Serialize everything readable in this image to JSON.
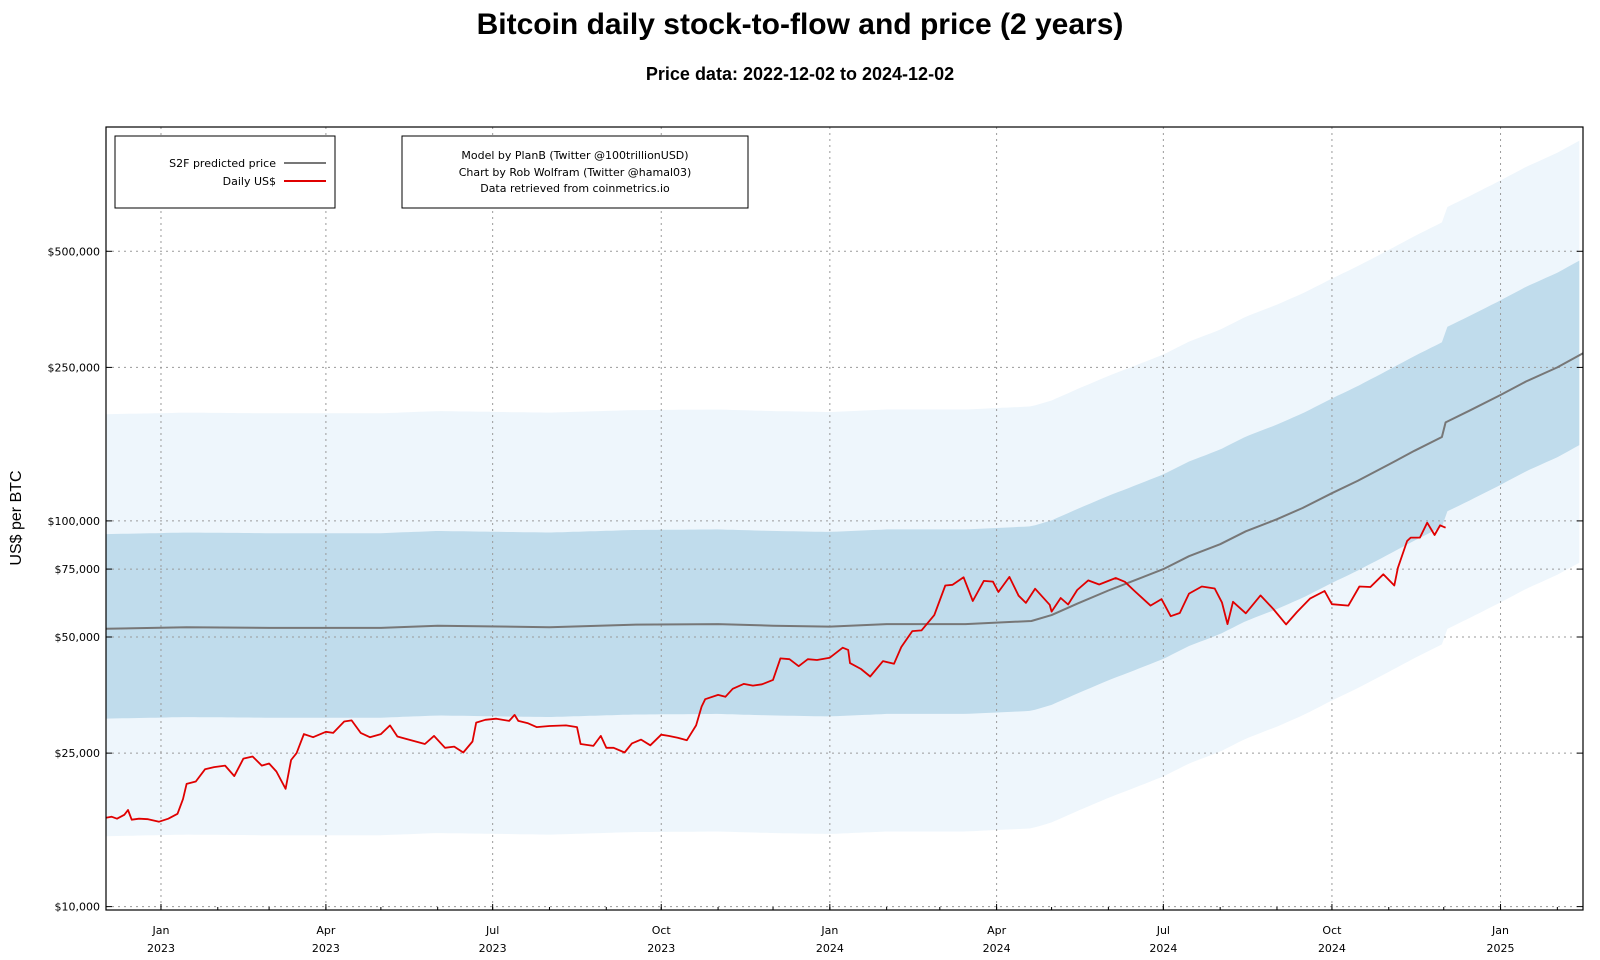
{
  "chart_data": {
    "type": "line",
    "title": "Bitcoin daily stock-to-flow and price (2 years)",
    "subtitle": "Price data: 2022-12-02 to 2024-12-02",
    "ylabel": "US$ per BTC",
    "xlabel": "",
    "yscale": "log",
    "ylim": [
      9800,
      1050000
    ],
    "xlim": [
      "2022-12-02",
      "2025-02-15"
    ],
    "grid": true,
    "legend_position": "top-left",
    "y_ticks": [
      {
        "value": 10000,
        "label": "$10,000"
      },
      {
        "value": 25000,
        "label": "$25,000"
      },
      {
        "value": 50000,
        "label": "$50,000"
      },
      {
        "value": 75000,
        "label": "$75,000"
      },
      {
        "value": 100000,
        "label": "$100,000"
      },
      {
        "value": 250000,
        "label": "$250,000"
      },
      {
        "value": 500000,
        "label": "$500,000"
      }
    ],
    "x_ticks": [
      {
        "date": "2023-01-01",
        "month": "Jan",
        "year": "2023"
      },
      {
        "date": "2023-04-01",
        "month": "Apr",
        "year": "2023"
      },
      {
        "date": "2023-07-01",
        "month": "Jul",
        "year": "2023"
      },
      {
        "date": "2023-10-01",
        "month": "Oct",
        "year": "2023"
      },
      {
        "date": "2024-01-01",
        "month": "Jan",
        "year": "2024"
      },
      {
        "date": "2024-04-01",
        "month": "Apr",
        "year": "2024"
      },
      {
        "date": "2024-07-01",
        "month": "Jul",
        "year": "2024"
      },
      {
        "date": "2024-10-01",
        "month": "Oct",
        "year": "2024"
      },
      {
        "date": "2025-01-01",
        "month": "Jan",
        "year": "2025"
      }
    ],
    "series": [
      {
        "name": "S2F predicted price",
        "color": "#777777",
        "points": [
          [
            "2022-12-02",
            52500
          ],
          [
            "2023-01-15",
            53000
          ],
          [
            "2023-03-01",
            52800
          ],
          [
            "2023-05-01",
            52800
          ],
          [
            "2023-06-01",
            53500
          ],
          [
            "2023-08-01",
            53000
          ],
          [
            "2023-09-15",
            53800
          ],
          [
            "2023-11-01",
            54000
          ],
          [
            "2023-12-01",
            53500
          ],
          [
            "2024-01-01",
            53200
          ],
          [
            "2024-02-01",
            54000
          ],
          [
            "2024-03-15",
            54000
          ],
          [
            "2024-04-20",
            55000
          ],
          [
            "2024-05-01",
            57000
          ],
          [
            "2024-05-15",
            61000
          ],
          [
            "2024-06-01",
            66000
          ],
          [
            "2024-06-15",
            70000
          ],
          [
            "2024-07-01",
            75000
          ],
          [
            "2024-07-15",
            81000
          ],
          [
            "2024-08-01",
            87000
          ],
          [
            "2024-08-15",
            94000
          ],
          [
            "2024-09-01",
            101000
          ],
          [
            "2024-09-15",
            108000
          ],
          [
            "2024-10-01",
            118000
          ],
          [
            "2024-10-15",
            127000
          ],
          [
            "2024-11-01",
            140000
          ],
          [
            "2024-11-15",
            152000
          ],
          [
            "2024-11-30",
            165000
          ],
          [
            "2024-12-02",
            180000
          ],
          [
            "2024-12-15",
            193000
          ],
          [
            "2025-01-01",
            212000
          ],
          [
            "2025-01-15",
            230000
          ],
          [
            "2025-02-01",
            250000
          ],
          [
            "2025-02-15",
            272000
          ]
        ]
      },
      {
        "name": "Daily US$",
        "color": "#e00000",
        "points": [
          [
            "2022-12-02",
            17000
          ],
          [
            "2022-12-05",
            17100
          ],
          [
            "2022-12-08",
            16900
          ],
          [
            "2022-12-12",
            17300
          ],
          [
            "2022-12-14",
            17800
          ],
          [
            "2022-12-16",
            16800
          ],
          [
            "2022-12-20",
            16900
          ],
          [
            "2022-12-25",
            16850
          ],
          [
            "2022-12-31",
            16600
          ],
          [
            "2023-01-05",
            16900
          ],
          [
            "2023-01-10",
            17400
          ],
          [
            "2023-01-13",
            19000
          ],
          [
            "2023-01-15",
            20800
          ],
          [
            "2023-01-20",
            21100
          ],
          [
            "2023-01-25",
            22700
          ],
          [
            "2023-01-30",
            23000
          ],
          [
            "2023-02-05",
            23200
          ],
          [
            "2023-02-10",
            21800
          ],
          [
            "2023-02-15",
            24200
          ],
          [
            "2023-02-20",
            24500
          ],
          [
            "2023-02-25",
            23200
          ],
          [
            "2023-03-01",
            23500
          ],
          [
            "2023-03-05",
            22400
          ],
          [
            "2023-03-10",
            20200
          ],
          [
            "2023-03-13",
            24000
          ],
          [
            "2023-03-16",
            25000
          ],
          [
            "2023-03-20",
            28000
          ],
          [
            "2023-03-25",
            27500
          ],
          [
            "2023-04-01",
            28400
          ],
          [
            "2023-04-05",
            28200
          ],
          [
            "2023-04-11",
            30200
          ],
          [
            "2023-04-15",
            30400
          ],
          [
            "2023-04-20",
            28200
          ],
          [
            "2023-04-25",
            27500
          ],
          [
            "2023-05-01",
            28000
          ],
          [
            "2023-05-06",
            29500
          ],
          [
            "2023-05-10",
            27600
          ],
          [
            "2023-05-15",
            27200
          ],
          [
            "2023-05-20",
            26800
          ],
          [
            "2023-05-25",
            26400
          ],
          [
            "2023-05-30",
            27700
          ],
          [
            "2023-06-05",
            25800
          ],
          [
            "2023-06-10",
            26000
          ],
          [
            "2023-06-15",
            25100
          ],
          [
            "2023-06-20",
            26800
          ],
          [
            "2023-06-22",
            30000
          ],
          [
            "2023-06-27",
            30500
          ],
          [
            "2023-07-03",
            30700
          ],
          [
            "2023-07-10",
            30300
          ],
          [
            "2023-07-13",
            31400
          ],
          [
            "2023-07-15",
            30300
          ],
          [
            "2023-07-20",
            29900
          ],
          [
            "2023-07-25",
            29200
          ],
          [
            "2023-08-01",
            29400
          ],
          [
            "2023-08-10",
            29500
          ],
          [
            "2023-08-16",
            29200
          ],
          [
            "2023-08-18",
            26400
          ],
          [
            "2023-08-25",
            26100
          ],
          [
            "2023-08-29",
            27700
          ],
          [
            "2023-09-01",
            25800
          ],
          [
            "2023-09-05",
            25800
          ],
          [
            "2023-09-11",
            25100
          ],
          [
            "2023-09-15",
            26500
          ],
          [
            "2023-09-20",
            27100
          ],
          [
            "2023-09-25",
            26200
          ],
          [
            "2023-10-01",
            27900
          ],
          [
            "2023-10-05",
            27700
          ],
          [
            "2023-10-10",
            27400
          ],
          [
            "2023-10-15",
            27000
          ],
          [
            "2023-10-20",
            29500
          ],
          [
            "2023-10-23",
            33000
          ],
          [
            "2023-10-25",
            34500
          ],
          [
            "2023-11-01",
            35400
          ],
          [
            "2023-11-05",
            35000
          ],
          [
            "2023-11-09",
            36700
          ],
          [
            "2023-11-15",
            37800
          ],
          [
            "2023-11-20",
            37400
          ],
          [
            "2023-11-25",
            37700
          ],
          [
            "2023-12-01",
            38700
          ],
          [
            "2023-12-05",
            44000
          ],
          [
            "2023-12-10",
            43800
          ],
          [
            "2023-12-15",
            42000
          ],
          [
            "2023-12-20",
            43800
          ],
          [
            "2023-12-25",
            43600
          ],
          [
            "2024-01-01",
            44200
          ],
          [
            "2024-01-08",
            46900
          ],
          [
            "2024-01-11",
            46300
          ],
          [
            "2024-01-12",
            42800
          ],
          [
            "2024-01-18",
            41300
          ],
          [
            "2024-01-23",
            39500
          ],
          [
            "2024-01-30",
            43300
          ],
          [
            "2024-02-05",
            42600
          ],
          [
            "2024-02-09",
            47100
          ],
          [
            "2024-02-15",
            51800
          ],
          [
            "2024-02-20",
            52000
          ],
          [
            "2024-02-27",
            57000
          ],
          [
            "2024-03-04",
            68000
          ],
          [
            "2024-03-08",
            68300
          ],
          [
            "2024-03-14",
            71400
          ],
          [
            "2024-03-19",
            62000
          ],
          [
            "2024-03-25",
            69900
          ],
          [
            "2024-03-30",
            69600
          ],
          [
            "2024-04-02",
            65400
          ],
          [
            "2024-04-08",
            71600
          ],
          [
            "2024-04-13",
            64000
          ],
          [
            "2024-04-17",
            61300
          ],
          [
            "2024-04-22",
            66700
          ],
          [
            "2024-04-30",
            60600
          ],
          [
            "2024-05-01",
            58200
          ],
          [
            "2024-05-06",
            63100
          ],
          [
            "2024-05-10",
            60700
          ],
          [
            "2024-05-15",
            66200
          ],
          [
            "2024-05-21",
            70100
          ],
          [
            "2024-05-27",
            68400
          ],
          [
            "2024-06-05",
            71100
          ],
          [
            "2024-06-10",
            69500
          ],
          [
            "2024-06-15",
            66000
          ],
          [
            "2024-06-24",
            60300
          ],
          [
            "2024-06-30",
            62700
          ],
          [
            "2024-07-05",
            56600
          ],
          [
            "2024-07-10",
            57700
          ],
          [
            "2024-07-15",
            64800
          ],
          [
            "2024-07-22",
            67600
          ],
          [
            "2024-07-29",
            66800
          ],
          [
            "2024-08-02",
            61400
          ],
          [
            "2024-08-05",
            54000
          ],
          [
            "2024-08-08",
            61700
          ],
          [
            "2024-08-15",
            57600
          ],
          [
            "2024-08-23",
            64100
          ],
          [
            "2024-08-30",
            59100
          ],
          [
            "2024-09-06",
            53900
          ],
          [
            "2024-09-12",
            58100
          ],
          [
            "2024-09-19",
            62900
          ],
          [
            "2024-09-27",
            65800
          ],
          [
            "2024-10-01",
            60800
          ],
          [
            "2024-10-10",
            60300
          ],
          [
            "2024-10-16",
            67600
          ],
          [
            "2024-10-22",
            67400
          ],
          [
            "2024-10-29",
            72700
          ],
          [
            "2024-11-04",
            68000
          ],
          [
            "2024-11-06",
            75600
          ],
          [
            "2024-11-11",
            88700
          ],
          [
            "2024-11-13",
            90500
          ],
          [
            "2024-11-18",
            90500
          ],
          [
            "2024-11-22",
            98900
          ],
          [
            "2024-11-26",
            91900
          ],
          [
            "2024-11-29",
            97400
          ],
          [
            "2024-12-02",
            96000
          ]
        ]
      }
    ],
    "bands": [
      {
        "name": "outer",
        "color": "#eef6fc",
        "upper_mult": 3.6,
        "lower_mult": 0.29
      },
      {
        "name": "inner",
        "color": "#c0dcec",
        "upper_mult": 1.76,
        "lower_mult": 0.585
      }
    ]
  },
  "legend": {
    "s2f_label": "S2F predicted price",
    "daily_label": "Daily US$"
  },
  "credits": {
    "line1": "Model by PlanB (Twitter @100trillionUSD)",
    "line2": "Chart by Rob Wolfram (Twitter @hamal03)",
    "line3": "Data retrieved from coinmetrics.io"
  }
}
